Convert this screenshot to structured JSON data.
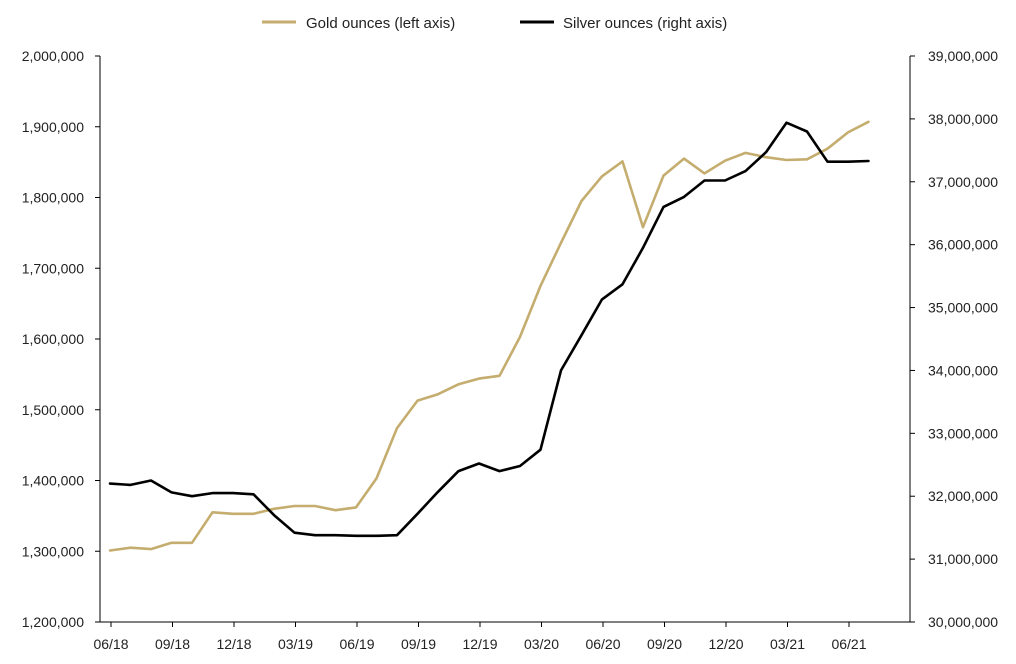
{
  "chart_data": {
    "type": "line",
    "legend": {
      "position": "top",
      "items": [
        {
          "label": "Gold ounces (left axis)",
          "color": "#c4ad6e"
        },
        {
          "label": "Silver ounces (right axis)",
          "color": "#000000"
        }
      ]
    },
    "x_tick_labels": [
      "06/18",
      "09/18",
      "12/18",
      "03/19",
      "06/19",
      "09/19",
      "12/19",
      "03/20",
      "06/20",
      "09/20",
      "12/20",
      "03/21",
      "06/21"
    ],
    "x": [
      "06/18",
      "07/18",
      "08/18",
      "09/18",
      "10/18",
      "11/18",
      "12/18",
      "01/19",
      "02/19",
      "03/19",
      "04/19",
      "05/19",
      "06/19",
      "07/19",
      "08/19",
      "09/19",
      "10/19",
      "11/19",
      "12/19",
      "01/20",
      "02/20",
      "03/20",
      "04/20",
      "05/20",
      "06/20",
      "07/20",
      "08/20",
      "09/20",
      "10/20",
      "11/20",
      "12/20",
      "01/21",
      "02/21",
      "03/21",
      "04/21",
      "05/21",
      "06/21",
      "07/21"
    ],
    "y_left": {
      "min": 1200000,
      "max": 2000000,
      "step": 100000,
      "tick_labels": [
        "1,200,000",
        "1,300,000",
        "1,400,000",
        "1,500,000",
        "1,600,000",
        "1,700,000",
        "1,800,000",
        "1,900,000",
        "2,000,000"
      ]
    },
    "y_right": {
      "min": 30000000,
      "max": 39000000,
      "step": 1000000,
      "tick_labels": [
        "30,000,000",
        "31,000,000",
        "32,000,000",
        "33,000,000",
        "34,000,000",
        "35,000,000",
        "36,000,000",
        "37,000,000",
        "38,000,000",
        "39,000,000"
      ]
    },
    "grid": false,
    "series": [
      {
        "name": "Gold ounces (left axis)",
        "axis": "left",
        "color": "#c4ad6e",
        "values": [
          1301000,
          1305000,
          1303000,
          1312000,
          1312000,
          1355000,
          1353000,
          1353000,
          1360000,
          1364000,
          1364000,
          1358000,
          1362000,
          1403000,
          1474000,
          1513000,
          1522000,
          1536000,
          1544000,
          1548000,
          1603000,
          1675000,
          1736000,
          1795000,
          1830000,
          1851000,
          1758000,
          1831000,
          1855000,
          1834000,
          1852000,
          1863000,
          1857000,
          1853000,
          1854000,
          1869000,
          1892000,
          1907000
        ]
      },
      {
        "name": "Silver ounces (right axis)",
        "axis": "right",
        "color": "#000000",
        "values": [
          32200000,
          32180000,
          32250000,
          32060000,
          32000000,
          32050000,
          32050000,
          32030000,
          31700000,
          31420000,
          31380000,
          31380000,
          31370000,
          31370000,
          31380000,
          31720000,
          32070000,
          32400000,
          32520000,
          32400000,
          32480000,
          32740000,
          34000000,
          34560000,
          35130000,
          35370000,
          35950000,
          36600000,
          36760000,
          37020000,
          37020000,
          37170000,
          37470000,
          37940000,
          37800000,
          37320000,
          37320000,
          37330000
        ]
      }
    ]
  }
}
